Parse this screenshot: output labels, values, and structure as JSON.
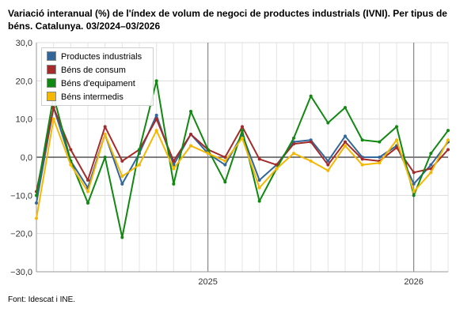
{
  "title": "Variació interanual (%) de l'índex de volum de negoci de productes industrials (IVNI). Per tipus de béns. Catalunya. 03/2024–03/2026",
  "source": "Font: Idescat i INE.",
  "chart_data": {
    "type": "line",
    "x": [
      "03/2024",
      "04/2024",
      "05/2024",
      "06/2024",
      "07/2024",
      "08/2024",
      "09/2024",
      "10/2024",
      "11/2024",
      "12/2024",
      "01/2025",
      "02/2025",
      "03/2025",
      "04/2025",
      "05/2025",
      "06/2025",
      "07/2025",
      "08/2025",
      "09/2025",
      "10/2025",
      "11/2025",
      "12/2025",
      "01/2026",
      "02/2026",
      "03/2026"
    ],
    "x_tick_labels": [
      {
        "at": "01/2025",
        "label": "2025"
      },
      {
        "at": "01/2026",
        "label": "2026"
      }
    ],
    "ylim": [
      -30,
      30
    ],
    "y_ticks": [
      -30,
      -20,
      -10,
      0,
      10,
      20,
      30
    ],
    "y_tick_labels": [
      "−30,0",
      "−20,0",
      "−10,0",
      "0,0",
      "10,0",
      "20,0",
      "30,0"
    ],
    "grid": true,
    "legend_position": "top-left",
    "series": [
      {
        "name": "Productes industrials",
        "color": "#336699",
        "values": [
          -12,
          13,
          -1,
          -8,
          6,
          -7,
          1,
          11,
          -2,
          6,
          1,
          -2,
          6,
          -6,
          -2,
          4,
          4.5,
          -1,
          5.5,
          0,
          0,
          3,
          -7,
          -2,
          4
        ]
      },
      {
        "name": "Béns de consum",
        "color": "#a52a2a",
        "values": [
          -9,
          13,
          2,
          -6,
          8,
          -1,
          2,
          10,
          -1,
          6,
          2,
          0,
          8,
          -0.5,
          -2,
          3.5,
          4,
          -2,
          4,
          -0.5,
          -1,
          2.5,
          -4,
          -3,
          2
        ]
      },
      {
        "name": "Béns d'equipament",
        "color": "#118811",
        "values": [
          -10,
          16,
          -1,
          -12,
          0,
          -21,
          2,
          20,
          -7,
          12,
          2,
          -6.5,
          7,
          -11.5,
          -3,
          5,
          16,
          9,
          13,
          4.5,
          4,
          8,
          -10,
          1,
          7
        ]
      },
      {
        "name": "Béns intermedis",
        "color": "#f5b800",
        "values": [
          -16,
          10,
          -2,
          -9,
          6,
          -5,
          -2,
          7,
          -3,
          3,
          1,
          -1,
          5,
          -8,
          -3,
          1,
          -1,
          -3.5,
          3,
          -2,
          -1.5,
          4.5,
          -9,
          -4,
          4.5
        ]
      }
    ]
  }
}
